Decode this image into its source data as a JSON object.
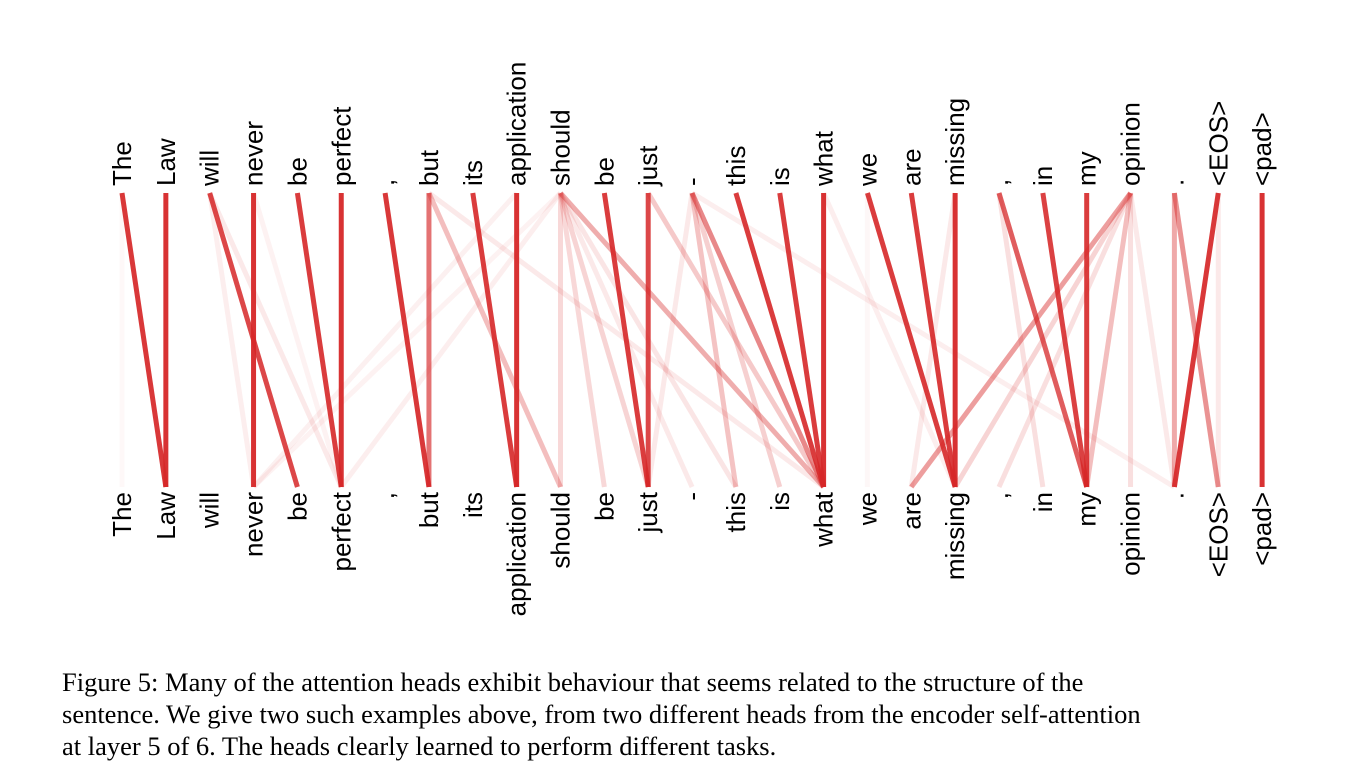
{
  "diagram": {
    "tokens": [
      "The",
      "Law",
      "will",
      "never",
      "be",
      "perfect",
      ",",
      "but",
      "its",
      "application",
      "should",
      "be",
      "just",
      "-",
      "this",
      "is",
      "what",
      "we",
      "are",
      "missing",
      ",",
      "in",
      "my",
      "opinion",
      ".",
      "<EOS>",
      "<pad>"
    ],
    "color": "#d62728",
    "edges": [
      {
        "from": 0,
        "to": 1,
        "w": 0.92
      },
      {
        "from": 1,
        "to": 1,
        "w": 0.95
      },
      {
        "from": 2,
        "to": 4,
        "w": 0.85
      },
      {
        "from": 2,
        "to": 5,
        "w": 0.1
      },
      {
        "from": 2,
        "to": 3,
        "w": 0.08
      },
      {
        "from": 3,
        "to": 3,
        "w": 0.95
      },
      {
        "from": 3,
        "to": 5,
        "w": 0.06
      },
      {
        "from": 4,
        "to": 5,
        "w": 0.9
      },
      {
        "from": 5,
        "to": 5,
        "w": 0.95
      },
      {
        "from": 6,
        "to": 7,
        "w": 0.92
      },
      {
        "from": 7,
        "to": 7,
        "w": 0.65
      },
      {
        "from": 7,
        "to": 10,
        "w": 0.3
      },
      {
        "from": 7,
        "to": 16,
        "w": 0.1
      },
      {
        "from": 8,
        "to": 9,
        "w": 0.9
      },
      {
        "from": 9,
        "to": 9,
        "w": 0.95
      },
      {
        "from": 9,
        "to": 3,
        "w": 0.07
      },
      {
        "from": 10,
        "to": 10,
        "w": 0.18
      },
      {
        "from": 10,
        "to": 11,
        "w": 0.18
      },
      {
        "from": 10,
        "to": 12,
        "w": 0.2
      },
      {
        "from": 10,
        "to": 13,
        "w": 0.1
      },
      {
        "from": 10,
        "to": 14,
        "w": 0.12
      },
      {
        "from": 10,
        "to": 16,
        "w": 0.38
      },
      {
        "from": 10,
        "to": 5,
        "w": 0.08
      },
      {
        "from": 10,
        "to": 3,
        "w": 0.06
      },
      {
        "from": 11,
        "to": 12,
        "w": 0.9
      },
      {
        "from": 12,
        "to": 12,
        "w": 0.85
      },
      {
        "from": 12,
        "to": 16,
        "w": 0.25
      },
      {
        "from": 13,
        "to": 16,
        "w": 0.55
      },
      {
        "from": 13,
        "to": 14,
        "w": 0.28
      },
      {
        "from": 13,
        "to": 15,
        "w": 0.22
      },
      {
        "from": 13,
        "to": 12,
        "w": 0.1
      },
      {
        "from": 14,
        "to": 16,
        "w": 0.9
      },
      {
        "from": 15,
        "to": 16,
        "w": 0.9
      },
      {
        "from": 16,
        "to": 16,
        "w": 0.95
      },
      {
        "from": 16,
        "to": 19,
        "w": 0.08
      },
      {
        "from": 17,
        "to": 19,
        "w": 0.9
      },
      {
        "from": 18,
        "to": 19,
        "w": 0.9
      },
      {
        "from": 19,
        "to": 19,
        "w": 0.95
      },
      {
        "from": 19,
        "to": 18,
        "w": 0.1
      },
      {
        "from": 20,
        "to": 22,
        "w": 0.75
      },
      {
        "from": 20,
        "to": 21,
        "w": 0.15
      },
      {
        "from": 21,
        "to": 22,
        "w": 0.88
      },
      {
        "from": 22,
        "to": 22,
        "w": 0.9
      },
      {
        "from": 23,
        "to": 22,
        "w": 0.3
      },
      {
        "from": 23,
        "to": 23,
        "w": 0.15
      },
      {
        "from": 23,
        "to": 20,
        "w": 0.15
      },
      {
        "from": 23,
        "to": 18,
        "w": 0.45
      },
      {
        "from": 23,
        "to": 19,
        "w": 0.2
      },
      {
        "from": 23,
        "to": 24,
        "w": 0.1
      },
      {
        "from": 24,
        "to": 24,
        "w": 0.4
      },
      {
        "from": 24,
        "to": 25,
        "w": 0.5
      },
      {
        "from": 25,
        "to": 24,
        "w": 0.92
      },
      {
        "from": 25,
        "to": 25,
        "w": 0.1
      },
      {
        "from": 26,
        "to": 26,
        "w": 0.95
      },
      {
        "from": 13,
        "to": 24,
        "w": 0.08
      },
      {
        "from": 0,
        "to": 0,
        "w": 0.03
      },
      {
        "from": 17,
        "to": 17,
        "w": 0.04
      }
    ]
  },
  "caption": {
    "line1": "Figure 5: Many of the attention heads exhibit behaviour that seems related to the structure of the",
    "line2": "sentence. We give two such examples above, from two different heads from the encoder self-attention",
    "line3": "at layer 5 of 6. The heads clearly learned to perform different tasks."
  }
}
